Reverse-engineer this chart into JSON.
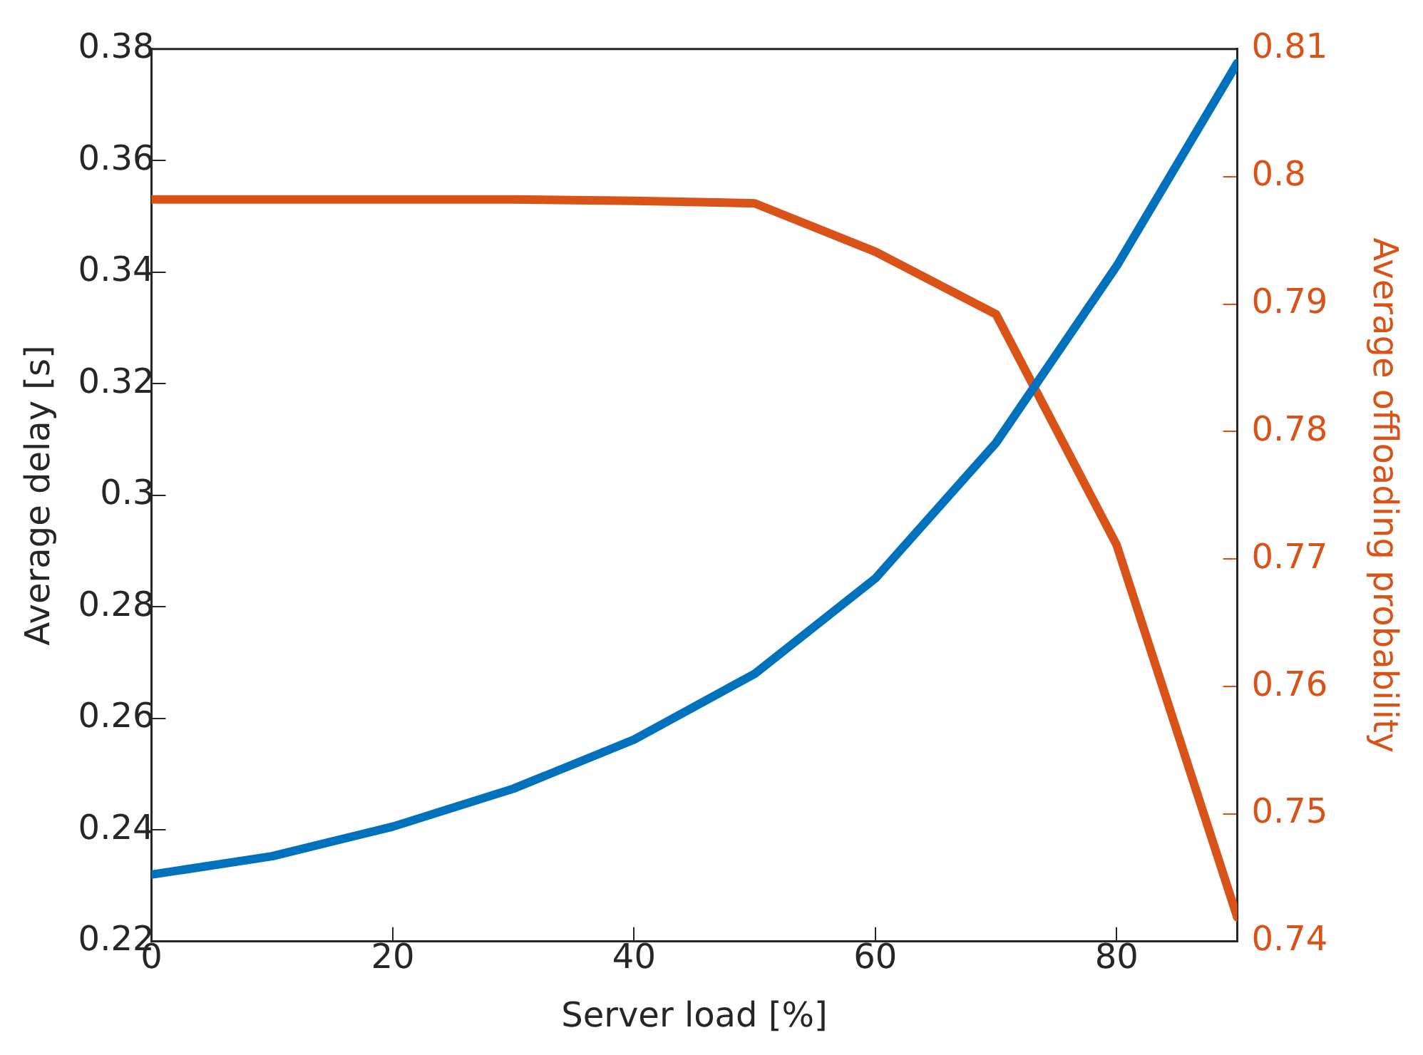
{
  "chart_data": {
    "type": "line",
    "xlabel": "Server load [%]",
    "ylabel": "Average delay [s]",
    "y2label": "Average offloading probability",
    "x": [
      0,
      10,
      20,
      30,
      40,
      50,
      60,
      70,
      80,
      90
    ],
    "series": [
      {
        "color": "#0072bd",
        "values": [
          0.232,
          0.2353,
          0.2406,
          0.2474,
          0.2562,
          0.268,
          0.2851,
          0.3094,
          0.3411,
          0.3775
        ]
      },
      {
        "color": "#d95319",
        "axis": "y2",
        "values": [
          0.7982,
          0.7982,
          0.7982,
          0.7982,
          0.7981,
          0.7979,
          0.7941,
          0.7892,
          0.7711,
          0.7419
        ]
      }
    ],
    "xlim": [
      0,
      90
    ],
    "xticks": [
      0,
      20,
      40,
      60,
      80
    ],
    "ylim": [
      0.22,
      0.38
    ],
    "yticks": [
      0.22,
      0.24,
      0.26,
      0.28,
      0.3,
      0.32,
      0.34,
      0.36,
      0.38
    ],
    "y2lim": [
      0.74,
      0.81
    ],
    "y2ticks": [
      0.74,
      0.75,
      0.76,
      0.77,
      0.78,
      0.79,
      0.8,
      0.81
    ],
    "grid": false,
    "legend": false,
    "marker": "none",
    "line_style": "solid"
  }
}
